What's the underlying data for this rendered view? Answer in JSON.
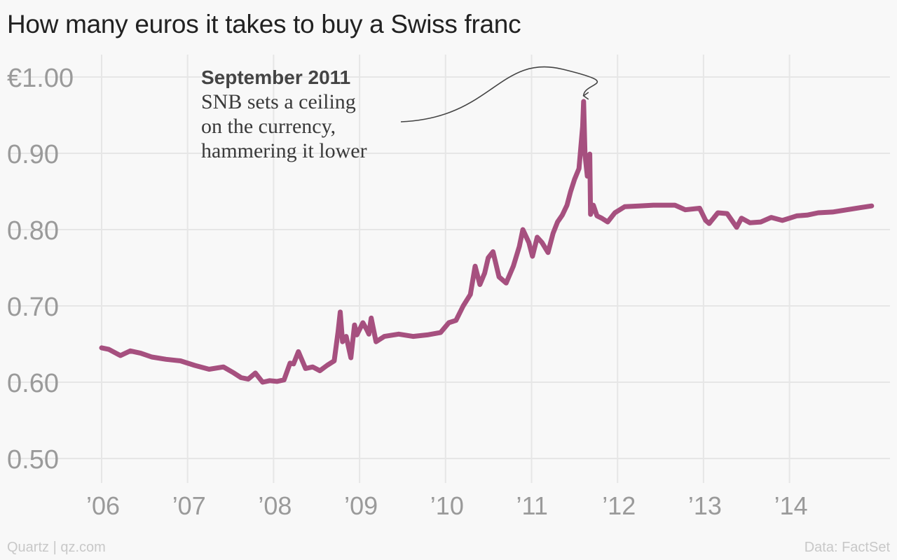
{
  "title": "How many euros it takes to buy a Swiss franc",
  "footer": {
    "source_left": "Quartz | qz.com",
    "source_right": "Data: FactSet"
  },
  "annotation": {
    "title": "September 2011",
    "text": "SNB sets a ceiling\non the currency,\nhammering it lower"
  },
  "colors": {
    "line": "#a6507f",
    "grid": "#e6e6e6",
    "ticks": "#9a9a9a",
    "title": "#222222"
  },
  "chart_data": {
    "type": "line",
    "title": "How many euros it takes to buy a Swiss franc",
    "xlabel": "",
    "ylabel": "",
    "xlim": [
      2006,
      2015
    ],
    "ylim": [
      0.5,
      1.0
    ],
    "grid": true,
    "x_ticks": [
      {
        "value": 2006,
        "label": "’06"
      },
      {
        "value": 2007,
        "label": "’07"
      },
      {
        "value": 2008,
        "label": "’08"
      },
      {
        "value": 2009,
        "label": "’09"
      },
      {
        "value": 2010,
        "label": "’10"
      },
      {
        "value": 2011,
        "label": "’11"
      },
      {
        "value": 2012,
        "label": "’12"
      },
      {
        "value": 2013,
        "label": "’13"
      },
      {
        "value": 2014,
        "label": "’14"
      }
    ],
    "y_ticks": [
      {
        "value": 1.0,
        "label": "€1.00"
      },
      {
        "value": 0.9,
        "label": "0.90"
      },
      {
        "value": 0.8,
        "label": "0.80"
      },
      {
        "value": 0.7,
        "label": "0.70"
      },
      {
        "value": 0.6,
        "label": "0.60"
      },
      {
        "value": 0.5,
        "label": "0.50"
      }
    ],
    "series": [
      {
        "color": "#a6507f",
        "x": [
          "2006-01-01",
          "2006-02-01",
          "2006-03-01",
          "2006-03-20",
          "2006-05-01",
          "2006-06-15",
          "2006-08-01",
          "2006-10-01",
          "2006-12-01",
          "2007-02-01",
          "2007-04-01",
          "2007-06-01",
          "2007-07-15",
          "2007-08-15",
          "2007-09-15",
          "2007-10-15",
          "2007-11-15",
          "2007-12-15",
          "2008-01-15",
          "2008-02-15",
          "2008-03-10",
          "2008-03-25",
          "2008-04-15",
          "2008-05-15",
          "2008-06-15",
          "2008-07-15",
          "2008-08-15",
          "2008-09-15",
          "2008-10-01",
          "2008-10-10",
          "2008-10-20",
          "2008-11-05",
          "2008-11-25",
          "2008-12-10",
          "2008-12-20",
          "2009-01-15",
          "2009-02-01",
          "2009-02-10",
          "2009-02-20",
          "2009-03-10",
          "2009-04-15",
          "2009-06-15",
          "2009-08-15",
          "2009-10-15",
          "2009-12-10",
          "2010-01-15",
          "2010-02-15",
          "2010-03-15",
          "2010-04-15",
          "2010-05-05",
          "2010-05-25",
          "2010-06-15",
          "2010-06-30",
          "2010-07-20",
          "2010-08-15",
          "2010-09-15",
          "2010-10-15",
          "2010-11-10",
          "2010-11-25",
          "2010-12-20",
          "2011-01-05",
          "2011-01-25",
          "2011-02-15",
          "2011-03-10",
          "2011-04-01",
          "2011-04-20",
          "2011-05-10",
          "2011-05-30",
          "2011-06-15",
          "2011-07-01",
          "2011-07-20",
          "2011-08-05",
          "2011-08-09",
          "2011-08-15",
          "2011-08-25",
          "2011-09-05",
          "2011-09-08",
          "2011-09-20",
          "2011-10-05",
          "2011-10-25",
          "2011-11-20",
          "2011-12-20",
          "2012-02-01",
          "2012-04-01",
          "2012-06-01",
          "2012-07-15",
          "2012-09-01",
          "2012-10-15",
          "2012-12-15",
          "2013-01-10",
          "2013-01-25",
          "2013-03-01",
          "2013-04-10",
          "2013-05-20",
          "2013-06-10",
          "2013-07-15",
          "2013-09-01",
          "2013-10-15",
          "2013-12-01",
          "2014-01-01",
          "2014-02-01",
          "2014-03-15",
          "2014-05-01",
          "2014-07-01",
          "2014-09-01",
          "2014-11-01",
          "2014-12-15"
        ],
        "y": [
          0.645,
          0.643,
          0.638,
          0.635,
          0.641,
          0.638,
          0.633,
          0.63,
          0.628,
          0.622,
          0.617,
          0.62,
          0.612,
          0.606,
          0.604,
          0.612,
          0.6,
          0.602,
          0.601,
          0.603,
          0.625,
          0.624,
          0.64,
          0.618,
          0.62,
          0.615,
          0.622,
          0.628,
          0.666,
          0.692,
          0.653,
          0.66,
          0.632,
          0.675,
          0.662,
          0.678,
          0.669,
          0.663,
          0.684,
          0.653,
          0.66,
          0.663,
          0.66,
          0.662,
          0.665,
          0.678,
          0.681,
          0.7,
          0.715,
          0.752,
          0.728,
          0.743,
          0.763,
          0.771,
          0.738,
          0.73,
          0.752,
          0.778,
          0.8,
          0.783,
          0.765,
          0.79,
          0.783,
          0.77,
          0.795,
          0.81,
          0.819,
          0.832,
          0.85,
          0.866,
          0.88,
          0.935,
          0.968,
          0.898,
          0.87,
          0.899,
          0.82,
          0.832,
          0.818,
          0.815,
          0.81,
          0.822,
          0.83,
          0.831,
          0.832,
          0.832,
          0.832,
          0.826,
          0.828,
          0.812,
          0.808,
          0.822,
          0.821,
          0.803,
          0.815,
          0.809,
          0.81,
          0.816,
          0.812,
          0.815,
          0.818,
          0.819,
          0.822,
          0.823,
          0.826,
          0.829,
          0.831
        ]
      }
    ]
  }
}
